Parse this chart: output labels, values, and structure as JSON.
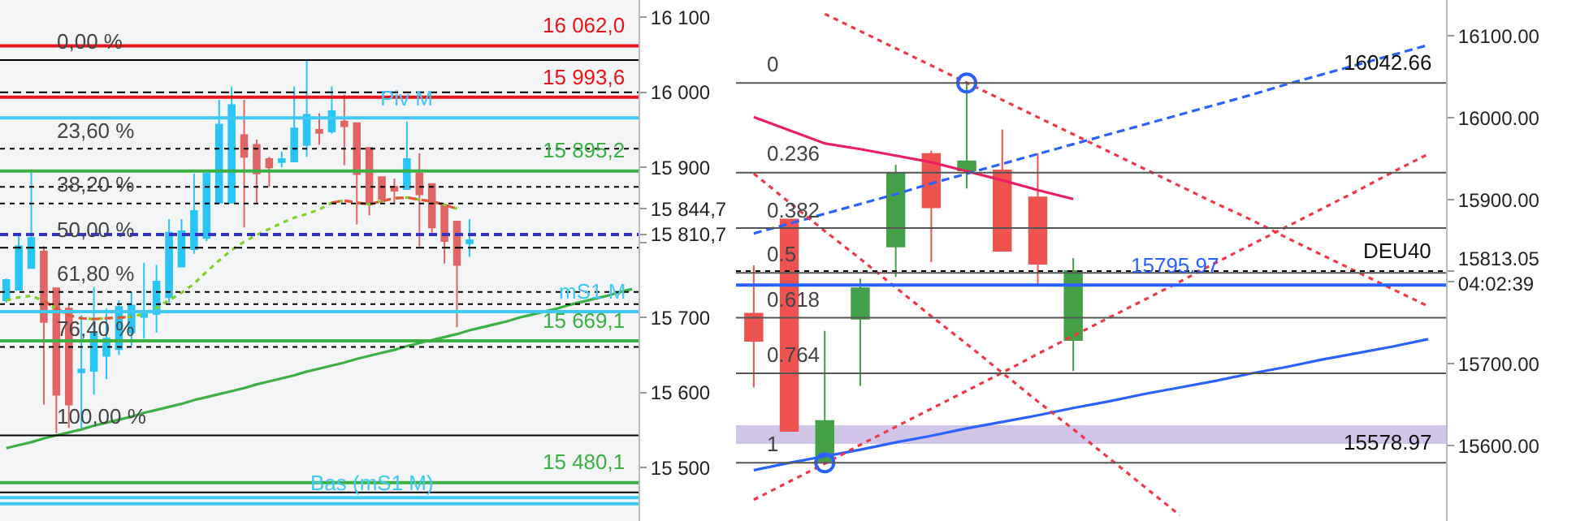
{
  "chart_data": [
    {
      "type": "candlestick",
      "tick_labels": "y",
      "categories": [
        null,
        null,
        null,
        null,
        null,
        null,
        null,
        null,
        null,
        null,
        null,
        null,
        null,
        null,
        null,
        null,
        null,
        null,
        null,
        null,
        null,
        null,
        null,
        null,
        null,
        null,
        null,
        null,
        null,
        null,
        null,
        null,
        null,
        null,
        null,
        null,
        null,
        null,
        null,
        null,
        null,
        null,
        null,
        null,
        null,
        null,
        null,
        null,
        null,
        null,
        null
      ],
      "ohlc": [
        [
          15723,
          15752,
          15720,
          15750
        ],
        [
          15737,
          15810,
          15737,
          15795
        ],
        [
          15766,
          15896,
          15766,
          15806
        ],
        [
          15788,
          15795,
          15584,
          15694
        ],
        [
          15739,
          15739,
          15546,
          15597
        ],
        [
          15712,
          15719,
          15553,
          15584
        ],
        [
          15627,
          15703,
          15553,
          15631
        ],
        [
          15629,
          15741,
          15597,
          15680
        ],
        [
          15649,
          15712,
          15618,
          15672
        ],
        [
          15658,
          15723,
          15650,
          15714
        ],
        [
          15680,
          15734,
          15662,
          15716
        ],
        [
          15701,
          15773,
          15672,
          15709
        ],
        [
          15705,
          15770,
          15680,
          15748
        ],
        [
          15727,
          15831,
          15720,
          15813
        ],
        [
          15768,
          15831,
          15768,
          15815
        ],
        [
          15791,
          15892,
          15785,
          15842
        ],
        [
          15806,
          15892,
          15802,
          15892
        ],
        [
          15853,
          15990,
          15853,
          15957
        ],
        [
          15853,
          16008,
          15853,
          15983
        ],
        [
          15943,
          15990,
          15820,
          15914
        ],
        [
          15930,
          15937,
          15853,
          15892
        ],
        [
          15911,
          15914,
          15874,
          15900
        ],
        [
          15907,
          15921,
          15900,
          15911
        ],
        [
          15908,
          16008,
          15907,
          15952
        ],
        [
          15930,
          16042,
          15914,
          15970
        ],
        [
          15950,
          15972,
          15930,
          15946
        ],
        [
          15948,
          16008,
          15945,
          15975
        ],
        [
          15961,
          15997,
          15903,
          15955
        ],
        [
          15959,
          15959,
          15824,
          15891
        ],
        [
          15926,
          15926,
          15836,
          15851
        ],
        [
          15887,
          15887,
          15851,
          15858
        ],
        [
          15874,
          15885,
          15851,
          15869
        ],
        [
          15871,
          15961,
          15871,
          15911
        ],
        [
          15892,
          15919,
          15795,
          15864
        ],
        [
          15878,
          15878,
          15813,
          15820
        ],
        [
          15849,
          15849,
          15772,
          15802
        ],
        [
          15828,
          15828,
          15687,
          15770
        ],
        [
          15799,
          15831,
          15781,
          15803
        ],
        null,
        null,
        null,
        null,
        null,
        null,
        null,
        null,
        null,
        null,
        null,
        null,
        null
      ],
      "colors": [
        "#29c5f6",
        "#29c5f6",
        "#29c5f6",
        "#e06666",
        "#e06666",
        "#e06666",
        "#29c5f6",
        "#29c5f6",
        "#29c5f6",
        "#29c5f6",
        "#29c5f6",
        "#29c5f6",
        "#29c5f6",
        "#29c5f6",
        "#29c5f6",
        "#29c5f6",
        "#29c5f6",
        "#29c5f6",
        "#29c5f6",
        "#e06666",
        "#e06666",
        "#e06666",
        "#29c5f6",
        "#29c5f6",
        "#29c5f6",
        "#e06666",
        "#29c5f6",
        "#e06666",
        "#e06666",
        "#e06666",
        "#e06666",
        "#e06666",
        "#29c5f6",
        "#e06666",
        "#e06666",
        "#e06666",
        "#e06666",
        "#29c5f6",
        null,
        null,
        null,
        null,
        null,
        null,
        null,
        null,
        null,
        null,
        null,
        null,
        null
      ],
      "ylim": [
        15429,
        16123
      ],
      "yticks": [
        {
          "value": 15500,
          "label": "15 500"
        },
        {
          "value": 15600,
          "label": "15 600"
        },
        {
          "value": 15700,
          "label": "15 700"
        },
        {
          "value": 15800,
          "label": null
        },
        {
          "value": 15810.7,
          "label": "15 810,7"
        },
        {
          "value": 15844.7,
          "label": "15 844,7"
        },
        {
          "value": 15900,
          "label": "15 900"
        },
        {
          "value": 16000,
          "label": "16 000"
        },
        {
          "value": 16100,
          "label": "16 100"
        }
      ],
      "series": [
        {
          "type": "line",
          "color": "#7ed321",
          "line_style": "dotted",
          "values": [
            15723,
            15727,
            15729,
            15722,
            15712,
            15703,
            15699,
            15698,
            15699,
            15700,
            15701,
            15705,
            15713,
            15723,
            15733,
            15745,
            15761,
            15776,
            15790,
            15801,
            15810,
            15818,
            15826,
            15833,
            15838,
            15844,
            15853,
            15856,
            15853,
            15851,
            15855,
            15859,
            15860,
            15857,
            15855,
            15850,
            15845,
            null,
            null,
            null,
            null,
            null,
            null,
            null,
            null,
            null,
            null,
            null,
            null,
            null,
            null
          ]
        },
        {
          "type": "line",
          "color": "#e8553e",
          "line_style": "dashed",
          "values": [
            null,
            null,
            null,
            15722,
            15712,
            15703,
            15699,
            15698,
            15699,
            15700,
            15701,
            null,
            null,
            null,
            null,
            null,
            null,
            null,
            null,
            null,
            null,
            null,
            null,
            null,
            null,
            null,
            15853,
            15856,
            15853,
            15851,
            15855,
            15859,
            15860,
            15857,
            15855,
            15850,
            15845,
            null,
            null,
            null,
            null,
            null,
            null,
            null,
            null,
            null,
            null,
            null,
            null,
            null,
            null
          ]
        },
        {
          "type": "line",
          "color": "#3cb043",
          "values": [
            15526,
            15530,
            15534,
            15539,
            15543,
            15547,
            15551,
            15556,
            15560,
            15564,
            15568,
            15573,
            15577,
            15581,
            15585,
            15590,
            15594,
            15598,
            15602,
            15606,
            15611,
            15615,
            15619,
            15623,
            15628,
            15632,
            15636,
            15640,
            15645,
            15649,
            15653,
            15657,
            15662,
            15666,
            15670,
            15674,
            15678,
            15683,
            15687,
            15691,
            15695,
            15700,
            15704,
            15708,
            15712,
            15717,
            15721,
            15725,
            15729,
            15734,
            15738
          ]
        }
      ],
      "ref_lines": [
        {
          "axis": "y",
          "value": 16062,
          "label": "16 062,0",
          "color": "#e8141b"
        },
        {
          "axis": "y",
          "value": 15993.6,
          "label": "15 993,6",
          "color": "#e8141b"
        },
        {
          "axis": "y",
          "value": 15966,
          "label": "Piv M",
          "color": "#3fc8f4"
        },
        {
          "axis": "y",
          "value": 15895.2,
          "label": "15 895,2",
          "color": "#3cb043"
        },
        {
          "axis": "y",
          "value": 15708,
          "label": "mS1 M",
          "color": "#3fc8f4"
        },
        {
          "axis": "y",
          "value": 15669.1,
          "label": "15 669,1",
          "color": "#3cb043"
        },
        {
          "axis": "y",
          "value": 15480.1,
          "label": "15 480,1",
          "color": "#3cb043"
        },
        {
          "axis": "y",
          "value": 15452,
          "label": "Bas (mS1 M)",
          "color": "#3fc8f4"
        },
        {
          "axis": "y",
          "value": 15460,
          "color": "#3fc8f4"
        },
        {
          "axis": "y",
          "value": 15810.7,
          "color": "#3333cc",
          "line_style": "dashed"
        },
        {
          "axis": "y",
          "value": 16043,
          "color": "#000000"
        },
        {
          "axis": "y",
          "value": 16000,
          "color": "#000000",
          "line_style": "dashed"
        },
        {
          "axis": "y",
          "value": 15925,
          "color": "#000000",
          "line_style": "dotted"
        },
        {
          "axis": "y",
          "value": 15874,
          "color": "#000000",
          "line_style": "dotted"
        },
        {
          "axis": "y",
          "value": 15852,
          "color": "#000000",
          "line_style": "dotted"
        },
        {
          "axis": "y",
          "value": 15793,
          "color": "#000000",
          "line_style": "dashed"
        },
        {
          "axis": "y",
          "value": 15734,
          "color": "#000000",
          "line_style": "dotted"
        },
        {
          "axis": "y",
          "value": 15718,
          "color": "#000000",
          "line_style": "dotted"
        },
        {
          "axis": "y",
          "value": 15661,
          "color": "#000000",
          "line_style": "dotted"
        },
        {
          "axis": "y",
          "value": 15543,
          "color": "#000000"
        },
        {
          "axis": "y",
          "value": 15467,
          "color": "#000000"
        }
      ],
      "annotations": [
        {
          "text": "0,00 %",
          "y": 16043
        },
        {
          "text": "23,60 %",
          "y": 15925
        },
        {
          "text": "38,20 %",
          "y": 15852
        },
        {
          "text": "50,00 %",
          "y": 15793
        },
        {
          "text": "61,80 %",
          "y": 15734
        },
        {
          "text": "76,40 %",
          "y": 15661
        },
        {
          "text": "100,00 %",
          "y": 15543
        }
      ]
    },
    {
      "type": "candlestick",
      "tick_labels": "y",
      "categories": [
        null,
        null,
        null,
        null,
        null,
        null,
        null,
        null,
        null,
        null,
        null,
        null,
        null,
        null,
        null,
        null,
        null,
        null,
        null,
        null
      ],
      "ohlc": [
        [
          15761,
          15820,
          15671,
          15728
        ],
        [
          15876,
          15876,
          15618,
          15618
        ],
        [
          15581,
          15740,
          15579,
          15630
        ],
        [
          15755,
          15804,
          15673,
          15792
        ],
        [
          15843,
          15943,
          15806,
          15933
        ],
        [
          15956,
          15960,
          15824,
          15891
        ],
        [
          15936,
          16042,
          15914,
          15947
        ],
        [
          15936,
          15986,
          15838,
          15838
        ],
        [
          15903,
          15957,
          15797,
          15822
        ],
        [
          15729,
          15829,
          15691,
          15813
        ],
        null,
        null,
        null,
        null,
        null,
        null,
        null,
        null,
        null,
        null
      ],
      "colors": [
        "#ef5350",
        "#ef5350",
        "#43a047",
        "#43a047",
        "#43a047",
        "#ef5350",
        "#43a047",
        "#ef5350",
        "#ef5350",
        "#43a047",
        null,
        null,
        null,
        null,
        null,
        null,
        null,
        null,
        null,
        null
      ],
      "ylim": [
        15508,
        16144
      ],
      "yticks": [
        {
          "value": 15600,
          "label": "15600.00"
        },
        {
          "value": 15700,
          "label": "15700.00"
        },
        {
          "value": 15800,
          "label": null
        },
        {
          "value": 15813.05,
          "label": "15813.05\n04:02:39"
        },
        {
          "value": 15900,
          "label": "15900.00"
        },
        {
          "value": 16000,
          "label": "16000.00"
        },
        {
          "value": 16100,
          "label": "16100.00"
        }
      ],
      "series": [
        {
          "type": "line",
          "color": "#e91e63",
          "values": [
            16001,
            15985,
            15969,
            15962,
            15954,
            15946,
            15935,
            15924,
            15912,
            15901,
            null,
            null,
            null,
            null,
            null,
            null,
            null,
            null,
            null,
            null
          ]
        },
        {
          "type": "line",
          "color": "#2962ff",
          "line_style": "dashed",
          "values": [
            15859,
            15871,
            15883,
            15895,
            15907,
            15920,
            15932,
            15944,
            15956,
            15968,
            15980,
            15992,
            16004,
            16016,
            16028,
            16041,
            16053,
            16065,
            16077,
            16089
          ]
        },
        {
          "type": "line",
          "color": "#2962ff",
          "values": [
            15570,
            15579,
            15587,
            15595,
            15604,
            15612,
            15621,
            15629,
            15637,
            15646,
            15654,
            15663,
            15671,
            15679,
            15688,
            15696,
            15705,
            15713,
            15721,
            15730
          ]
        },
        {
          "type": "line",
          "color": "#f23645",
          "line_style": "dotted",
          "values": [
            null,
            null,
            16127,
            16106,
            16085,
            16064,
            16043,
            16022,
            16001,
            15980,
            15959,
            15938,
            15917,
            15896,
            15876,
            15854,
            15833,
            15812,
            15791,
            15770
          ]
        },
        {
          "type": "line",
          "color": "#f23645",
          "line_style": "dotted",
          "values": [
            15932,
            15897,
            15862,
            15828,
            15793,
            15758,
            15724,
            15689,
            15654,
            15620,
            15585,
            15550,
            15515,
            null,
            null,
            null,
            null,
            null,
            null,
            null
          ]
        },
        {
          "type": "line",
          "color": "#f23645",
          "line_style": "dotted",
          "values": [
            15534,
            15556,
            15578,
            15601,
            15623,
            15645,
            15667,
            15689,
            15712,
            15734,
            15756,
            15778,
            15800,
            15823,
            15845,
            15867,
            15889,
            15911,
            15934,
            15956
          ]
        },
        {
          "type": "scatter",
          "color": "#2962ff",
          "marker": "circle",
          "values": [
            null,
            null,
            15578.97,
            null,
            null,
            null,
            16042.66,
            null,
            null,
            null,
            null,
            null,
            null,
            null,
            null,
            null,
            null,
            null,
            null,
            null
          ]
        }
      ],
      "bands": [
        {
          "axis": "y",
          "from": 15602,
          "to": 15625,
          "color": "#d1c4e9"
        }
      ],
      "ref_lines": [
        {
          "axis": "y",
          "value": 16042.66,
          "label": "16042.66",
          "color": "#555555"
        },
        {
          "axis": "y",
          "value": 15933.2,
          "color": "#555555"
        },
        {
          "axis": "y",
          "value": 15865.5,
          "color": "#555555"
        },
        {
          "axis": "y",
          "value": 15810.8,
          "color": "#555555"
        },
        {
          "axis": "y",
          "value": 15756.1,
          "color": "#555555"
        },
        {
          "axis": "y",
          "value": 15688.4,
          "color": "#555555"
        },
        {
          "axis": "y",
          "value": 15578.97,
          "label": "15578.97",
          "color": "#555555"
        },
        {
          "axis": "y",
          "value": 15813.05,
          "label": "DEU40",
          "color": "#000000",
          "line_style": "dotted"
        },
        {
          "axis": "y",
          "value": 15795.97,
          "label": "15795.97",
          "color": "#2962ff"
        }
      ],
      "annotations": [
        {
          "text": "0",
          "y": 16042.66
        },
        {
          "text": "0.236",
          "y": 15933.2
        },
        {
          "text": "0.382",
          "y": 15865.5
        },
        {
          "text": "0.5",
          "y": 15810.8
        },
        {
          "text": "0.618",
          "y": 15756.1
        },
        {
          "text": "0.764",
          "y": 15688.4
        },
        {
          "text": "1",
          "y": 15578.97
        }
      ]
    }
  ]
}
